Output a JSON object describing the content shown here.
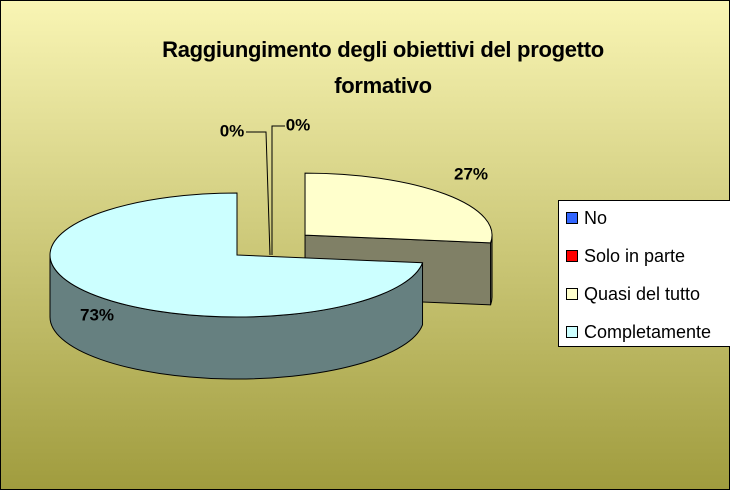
{
  "chart_data": {
    "type": "pie",
    "title": "Raggiungimento degli obiettivi del progetto formativo",
    "categories": [
      "No",
      "Solo in parte",
      "Quasi del tutto",
      "Completamente"
    ],
    "values": [
      0,
      0,
      27,
      73
    ],
    "value_labels": [
      "0%",
      "0%",
      "27%",
      "73%"
    ],
    "colors": [
      "#3366ff",
      "#ff0000",
      "#ffffcc",
      "#ccffff"
    ],
    "legend": "right"
  }
}
